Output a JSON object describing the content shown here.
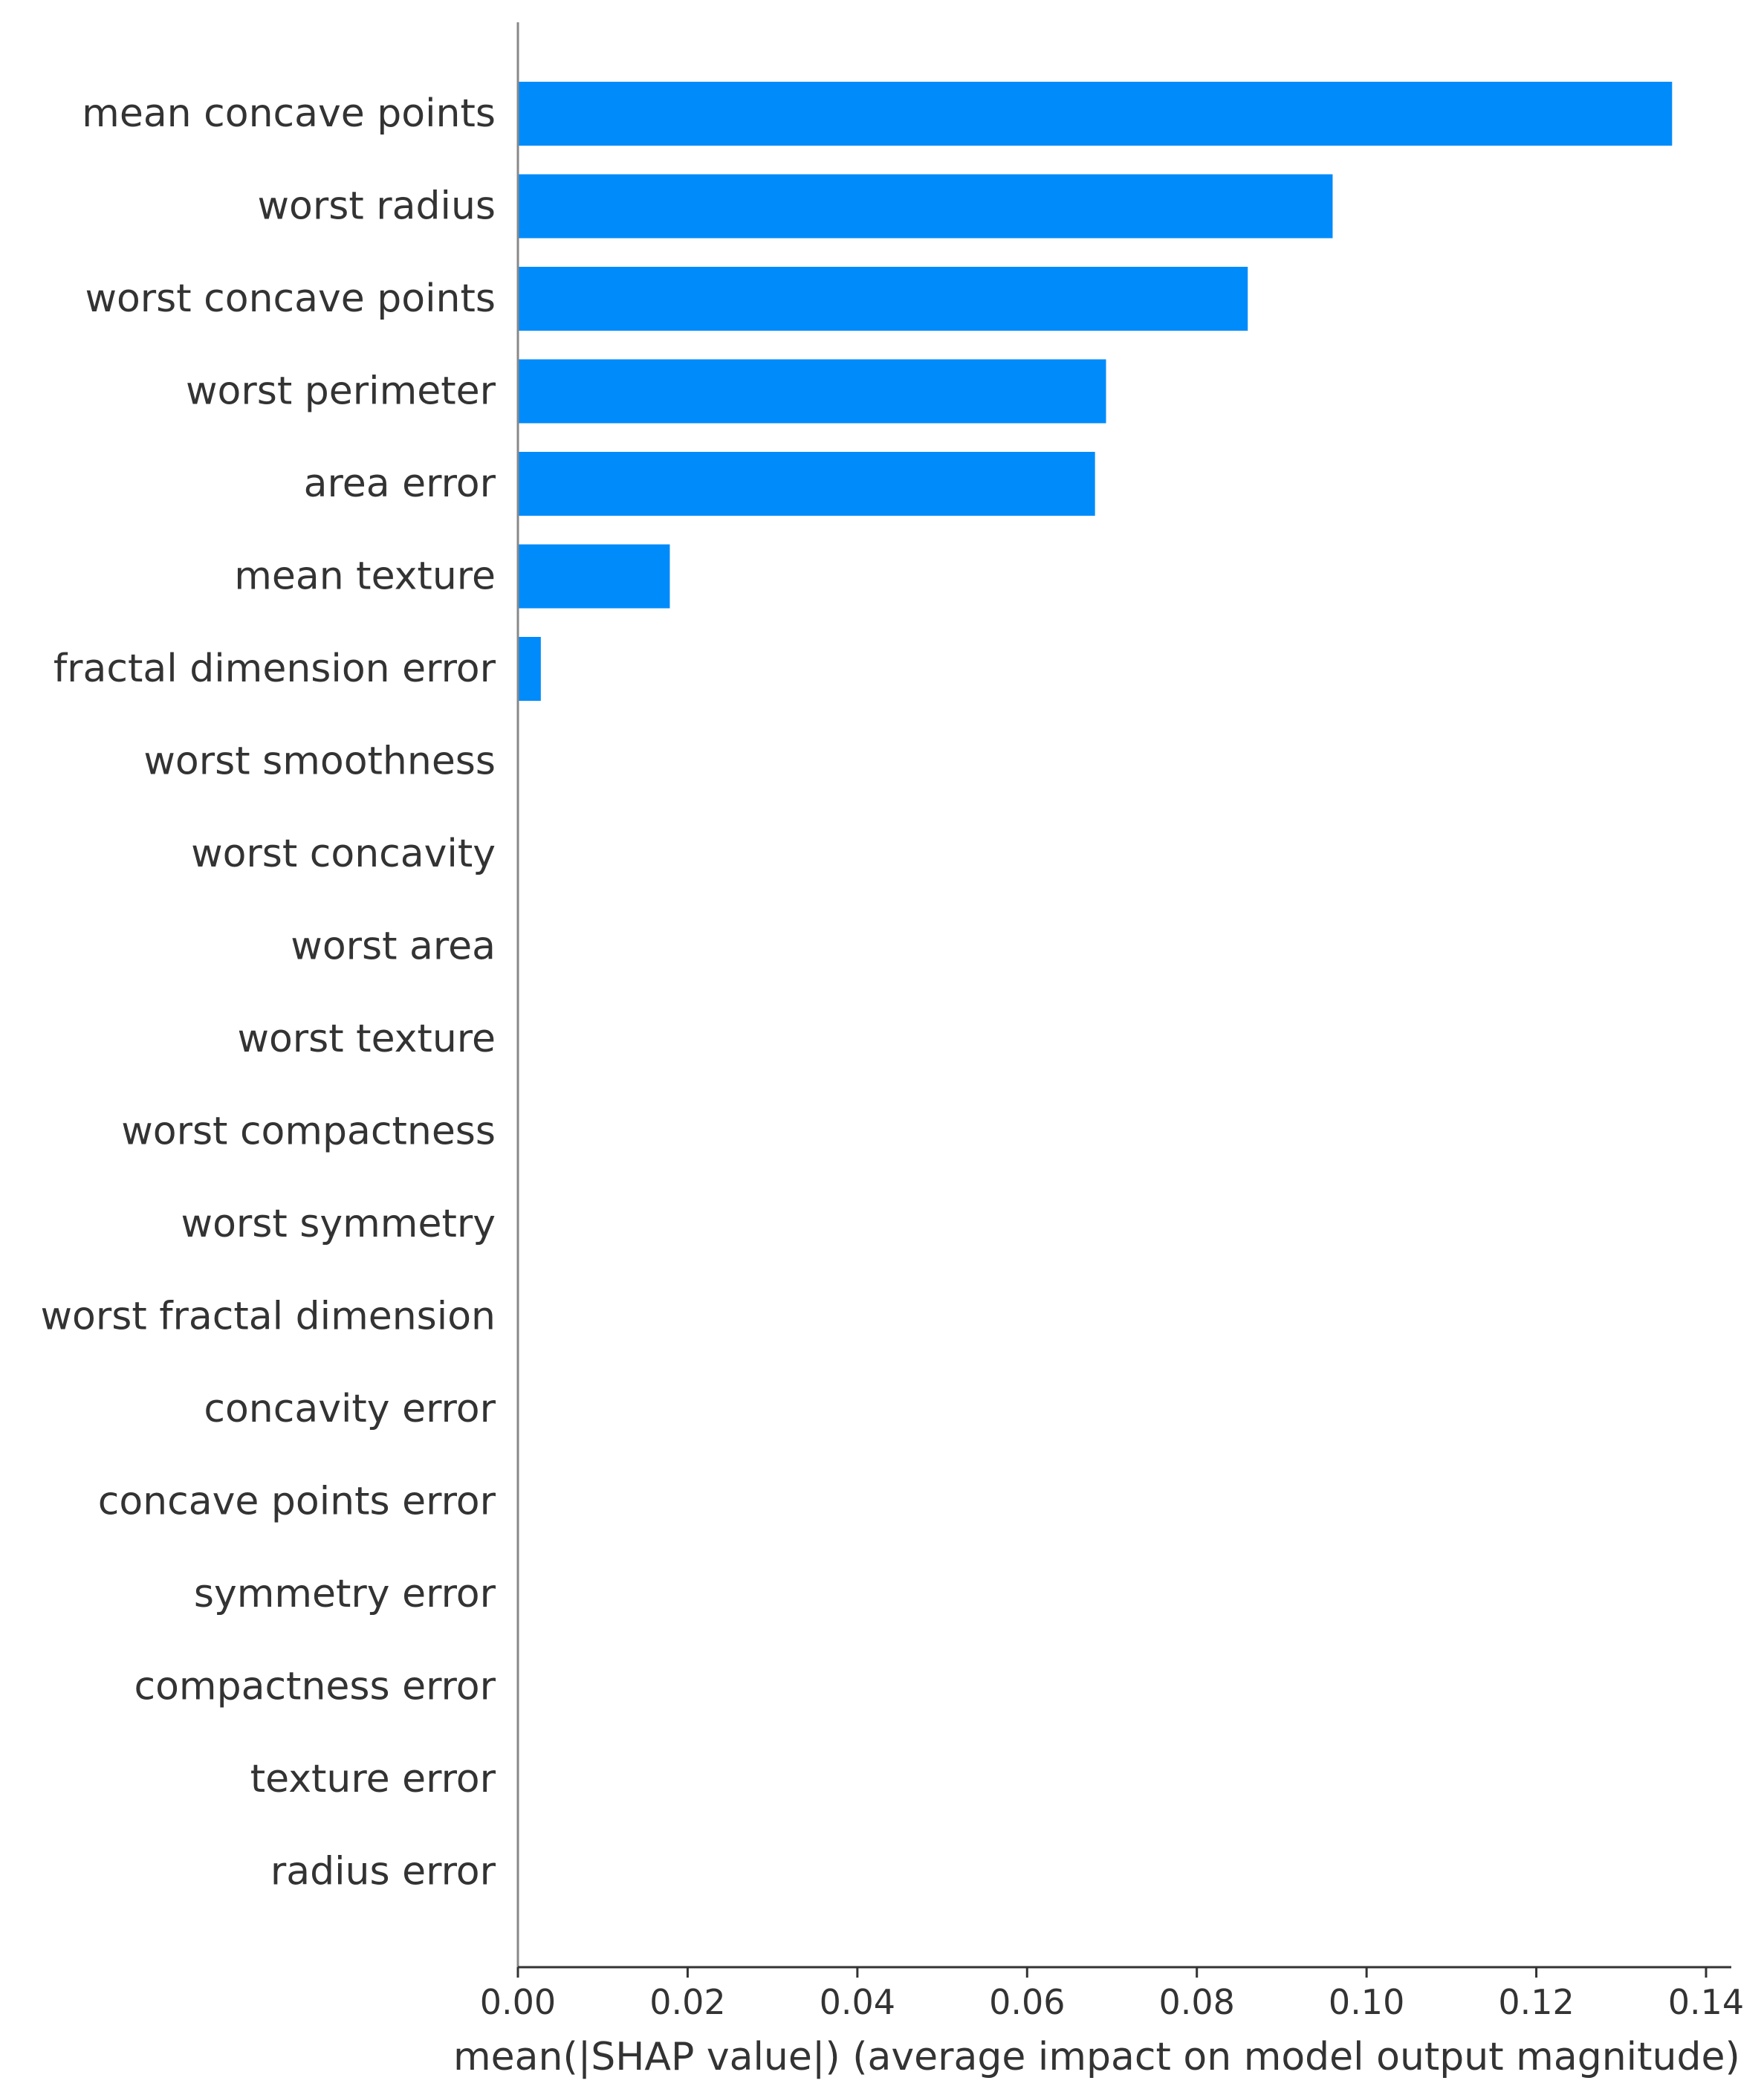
{
  "chart_data": {
    "type": "bar",
    "orientation": "horizontal",
    "categories": [
      "mean concave points",
      "worst radius",
      "worst concave points",
      "worst perimeter",
      "area error",
      "mean texture",
      "fractal dimension error",
      "worst smoothness",
      "worst concavity",
      "worst area",
      "worst texture",
      "worst compactness",
      "worst symmetry",
      "worst fractal dimension",
      "concavity error",
      "concave points error",
      "symmetry error",
      "compactness error",
      "texture error",
      "radius error"
    ],
    "values": [
      0.136,
      0.096,
      0.086,
      0.0693,
      0.068,
      0.0179,
      0.0027,
      0,
      0,
      0,
      0,
      0,
      0,
      0,
      0,
      0,
      0,
      0,
      0,
      0
    ],
    "xlabel": "mean(|SHAP value|) (average impact on model output magnitude)",
    "xlim": [
      0,
      0.143
    ],
    "xticks": [
      "0.00",
      "0.02",
      "0.04",
      "0.06",
      "0.08",
      "0.10",
      "0.12",
      "0.14"
    ],
    "bar_color": "#008bfb",
    "axis_color": "#888888",
    "text_color": "#333333",
    "grid": false,
    "legend": false
  }
}
